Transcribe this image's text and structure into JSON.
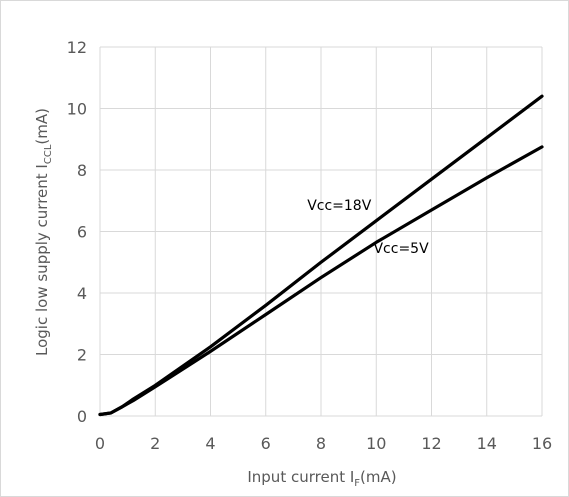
{
  "chart_data": {
    "type": "line",
    "title": "",
    "xlabel_main": "Input current I",
    "xlabel_sub": "F",
    "xlabel_tail": "(mA)",
    "ylabel_main": "Logic low  supply current I",
    "ylabel_sub": "CCL",
    "ylabel_tail": "(mA)",
    "xlim": [
      0,
      16
    ],
    "ylim": [
      0,
      12
    ],
    "xticks": [
      0,
      2,
      4,
      6,
      8,
      10,
      12,
      14,
      16
    ],
    "yticks": [
      0,
      2,
      4,
      6,
      8,
      10,
      12
    ],
    "grid": true,
    "series": [
      {
        "name": "Vcc=18V",
        "color": "#000000",
        "x": [
          0,
          0.4,
          0.8,
          1.2,
          2,
          4,
          6,
          8,
          10,
          12,
          14,
          16
        ],
        "y": [
          0.05,
          0.1,
          0.3,
          0.55,
          1.0,
          2.25,
          3.6,
          5.0,
          6.35,
          7.7,
          9.05,
          10.4
        ]
      },
      {
        "name": "Vcc=5V",
        "color": "#000000",
        "x": [
          0,
          0.4,
          0.8,
          1.2,
          2,
          4,
          6,
          8,
          10,
          12,
          14,
          16
        ],
        "y": [
          0.05,
          0.1,
          0.3,
          0.5,
          0.95,
          2.1,
          3.3,
          4.5,
          5.65,
          6.7,
          7.75,
          8.75
        ]
      }
    ],
    "annotations": [
      {
        "text": "Vcc=18V",
        "series": 0
      },
      {
        "text": "Vcc=5V",
        "series": 1
      }
    ]
  }
}
